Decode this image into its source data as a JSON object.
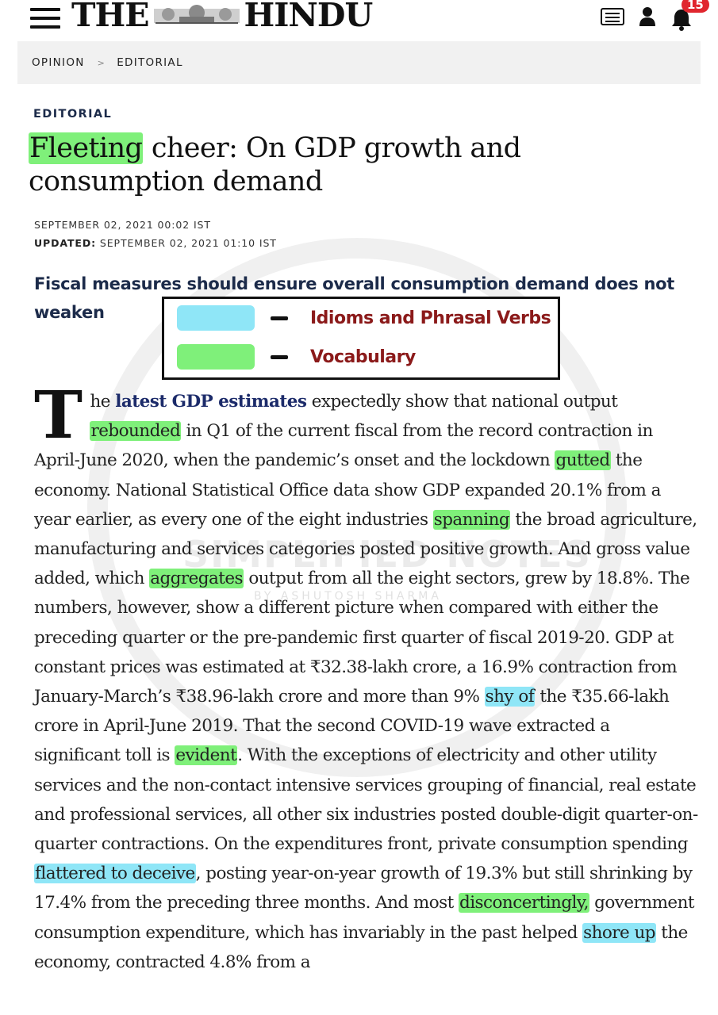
{
  "header": {
    "logo_left": "THE",
    "logo_right": "HINDU",
    "notification_count": "15"
  },
  "breadcrumb": {
    "items": [
      "OPINION",
      "EDITORIAL"
    ],
    "separator": ">"
  },
  "article": {
    "section": "EDITORIAL",
    "headline_highlight": "Fleeting",
    "headline_rest": " cheer: On GDP growth and consumption demand",
    "published": "SEPTEMBER 02, 2021 00:02 IST",
    "updated_label": "UPDATED:",
    "updated": " SEPTEMBER 02, 2021 01:10 IST",
    "subhead": "Fiscal measures should ensure overall consumption demand does not weaken",
    "drop_cap": "T",
    "body": [
      {
        "t": "he "
      },
      {
        "t": "latest GDP estimates",
        "link": true
      },
      {
        "t": " expectedly show that national output "
      },
      {
        "t": "rebounded",
        "hl": "green"
      },
      {
        "t": " in Q1 of the current fiscal from the record contraction in April-June 2020, when the pandemic’s onset and the lockdown "
      },
      {
        "t": "gutted",
        "hl": "green"
      },
      {
        "t": " the economy. National Statistical Office data show GDP expanded 20.1% from a year earlier, as every one of the eight industries "
      },
      {
        "t": "spanning",
        "hl": "green"
      },
      {
        "t": " the broad agriculture, manufacturing and services categories posted positive growth. And gross value added, which "
      },
      {
        "t": "aggregates",
        "hl": "green"
      },
      {
        "t": " output from all the eight sectors, grew by 18.8%. The numbers, however, show a different picture when compared with either the preceding quarter or the pre-pandemic first quarter of fiscal 2019-20. GDP at constant prices was estimated at ₹32.38-lakh crore, a 16.9% contraction from January-March’s ₹38.96-lakh crore and more than 9% "
      },
      {
        "t": "shy of",
        "hl": "blue"
      },
      {
        "t": " the ₹35.66-lakh crore in April-June 2019. That the second COVID-19 wave extracted a significant toll is "
      },
      {
        "t": "evident",
        "hl": "green"
      },
      {
        "t": ". With the exceptions of electricity and other utility services and the non-contact intensive services grouping of financial, real estate and professional services, all other six industries posted double-digit quarter-on-quarter contractions. On the expenditures front, private consumption spending "
      },
      {
        "t": "flattered to deceive",
        "hl": "blue"
      },
      {
        "t": ", posting year-on-year growth of 19.3% but still shrinking by 17.4% from the preceding three months. And most "
      },
      {
        "t": "disconcertingly,",
        "hl": "green"
      },
      {
        "t": " government consumption expenditure, which has invariably in the past helped "
      },
      {
        "t": "shore up",
        "hl": "blue"
      },
      {
        "t": " the economy, contracted 4.8% from a"
      }
    ]
  },
  "legend": {
    "items": [
      {
        "color": "#8fe6f7",
        "label": "Idioms and Phrasal Verbs"
      },
      {
        "color": "#7ff07a",
        "label": "Vocabulary"
      }
    ]
  },
  "watermark": {
    "title": "SIMPLIFIED NOTES",
    "by": "BY ASHUTOSH SHARMA"
  },
  "colors": {
    "highlight_green": "#7ff07a",
    "highlight_blue": "#8fe6f7",
    "legend_text": "#8b1a1a",
    "navy": "#1c2b4a",
    "badge": "#e0262e"
  },
  "icons": [
    "menu-icon",
    "epaper-icon",
    "user-icon",
    "bell-icon"
  ]
}
